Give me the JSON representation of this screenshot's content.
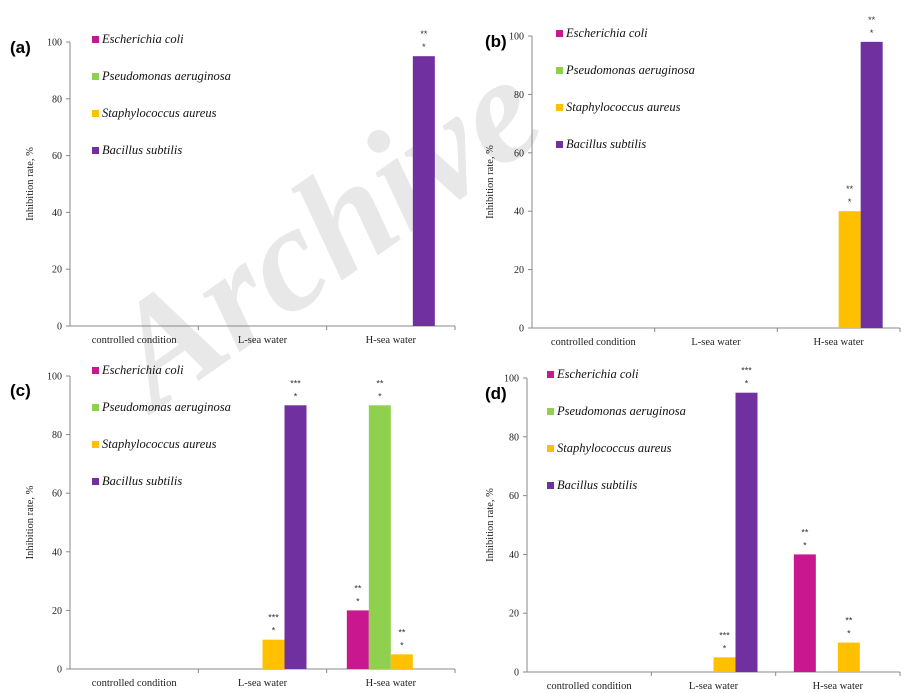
{
  "watermark": "Archive",
  "chart_data": [
    {
      "type": "bar",
      "panel": "(a)",
      "ylabel": "Inhibition rate, %",
      "ylim": [
        0,
        100
      ],
      "yticks": [
        "0",
        "20",
        "40",
        "60",
        "80",
        "100"
      ],
      "categories": [
        "controlled condition",
        "L-sea water",
        "H-sea water"
      ],
      "series": [
        {
          "name": "Escherichia coli",
          "color": "#c8178f",
          "values": [
            0,
            0,
            0
          ],
          "sig": [
            "",
            "",
            ""
          ]
        },
        {
          "name": "Pseudomonas aeruginosa",
          "color": "#8fd14f",
          "values": [
            0,
            0,
            0
          ],
          "sig": [
            "",
            "",
            ""
          ]
        },
        {
          "name": "Staphylococcus aureus",
          "color": "#ffc000",
          "values": [
            0,
            0,
            0
          ],
          "sig": [
            "",
            "",
            ""
          ]
        },
        {
          "name": "Bacillus subtilis",
          "color": "#7030a0",
          "values": [
            0,
            0,
            95
          ],
          "sig": [
            "",
            "",
            "**\n*"
          ]
        }
      ],
      "legend": "top-left"
    },
    {
      "type": "bar",
      "panel": "(b)",
      "ylabel": "Inhibition rate, %",
      "ylim": [
        0,
        100
      ],
      "yticks": [
        "0",
        "20",
        "40",
        "60",
        "80",
        "100"
      ],
      "categories": [
        "controlled condition",
        "L-sea water",
        "H-sea water"
      ],
      "series": [
        {
          "name": "Escherichia coli",
          "color": "#c8178f",
          "values": [
            0,
            0,
            0
          ],
          "sig": [
            "",
            "",
            ""
          ]
        },
        {
          "name": "Pseudomonas aeruginosa",
          "color": "#8fd14f",
          "values": [
            0,
            0,
            0
          ],
          "sig": [
            "",
            "",
            ""
          ]
        },
        {
          "name": "Staphylococcus aureus",
          "color": "#ffc000",
          "values": [
            0,
            0,
            40
          ],
          "sig": [
            "",
            "",
            "**\n*"
          ]
        },
        {
          "name": "Bacillus subtilis",
          "color": "#7030a0",
          "values": [
            0,
            0,
            98
          ],
          "sig": [
            "",
            "",
            "**\n*"
          ]
        }
      ],
      "legend": "top-left"
    },
    {
      "type": "bar",
      "panel": "(c)",
      "ylabel": "Inhibition rate, %",
      "ylim": [
        0,
        100
      ],
      "yticks": [
        "0",
        "20",
        "40",
        "60",
        "80",
        "100"
      ],
      "categories": [
        "controlled condition",
        "L-sea water",
        "H-sea water"
      ],
      "series": [
        {
          "name": "Escherichia coli",
          "color": "#c8178f",
          "values": [
            0,
            0,
            20
          ],
          "sig": [
            "",
            "",
            "**\n*"
          ]
        },
        {
          "name": "Pseudomonas aeruginosa",
          "color": "#8fd14f",
          "values": [
            0,
            0,
            90
          ],
          "sig": [
            "",
            "",
            "**\n*"
          ]
        },
        {
          "name": "Staphylococcus aureus",
          "color": "#ffc000",
          "values": [
            0,
            10,
            5
          ],
          "sig": [
            "",
            "***\n*",
            "**\n*"
          ]
        },
        {
          "name": "Bacillus subtilis",
          "color": "#7030a0",
          "values": [
            0,
            90,
            0
          ],
          "sig": [
            "",
            "***\n*",
            ""
          ]
        }
      ],
      "legend": "top-left"
    },
    {
      "type": "bar",
      "panel": "(d)",
      "ylabel": "Inhibition rate, %",
      "ylim": [
        0,
        100
      ],
      "yticks": [
        "0",
        "20",
        "40",
        "60",
        "80",
        "100"
      ],
      "categories": [
        "controlled condition",
        "L-sea water",
        "H-sea water"
      ],
      "series": [
        {
          "name": "Escherichia coli",
          "color": "#c8178f",
          "values": [
            0,
            0,
            40
          ],
          "sig": [
            "",
            "",
            "**\n*"
          ]
        },
        {
          "name": "Pseudomonas aeruginosa",
          "color": "#8fd14f",
          "values": [
            0,
            0,
            0
          ],
          "sig": [
            "",
            "",
            ""
          ]
        },
        {
          "name": "Staphylococcus aureus",
          "color": "#ffc000",
          "values": [
            0,
            5,
            10
          ],
          "sig": [
            "",
            "***\n*",
            "**\n*"
          ]
        },
        {
          "name": "Bacillus subtilis",
          "color": "#7030a0",
          "values": [
            0,
            95,
            0
          ],
          "sig": [
            "",
            "***\n*",
            ""
          ]
        }
      ],
      "legend": "top-left"
    }
  ]
}
